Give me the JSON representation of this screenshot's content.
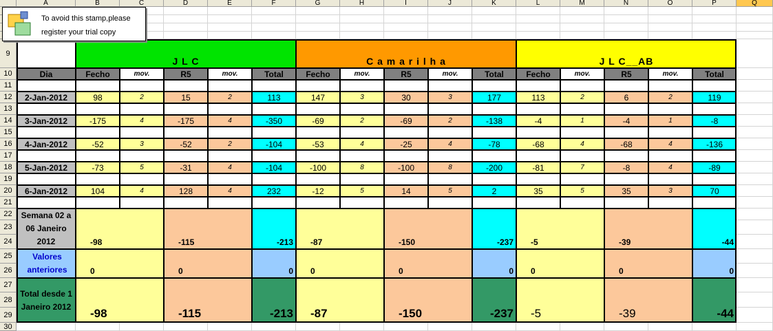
{
  "stamp": {
    "line1": "To avoid this stamp,please",
    "line2": "register your trial copy",
    "icon": "trial-stamp-icon"
  },
  "columns": [
    "A",
    "B",
    "C",
    "D",
    "E",
    "F",
    "G",
    "H",
    "I",
    "J",
    "K",
    "L",
    "M",
    "N",
    "O",
    "P",
    "Q"
  ],
  "selected_column": "Q",
  "rows": [
    "9",
    "10",
    "11",
    "12",
    "13",
    "14",
    "15",
    "16",
    "17",
    "18",
    "19",
    "20",
    "21",
    "22",
    "23",
    "24",
    "25",
    "26",
    "27",
    "28",
    "29",
    "30"
  ],
  "groups": [
    {
      "name": "J  L  C",
      "color": "#00e400"
    },
    {
      "name": "C a m a r i l h a",
      "color": "#ff9900"
    },
    {
      "name": "J L C__AB",
      "color": "#ffff00"
    }
  ],
  "headers": {
    "dia": "Dia",
    "sub": [
      "Fecho",
      "mov.",
      "R5",
      "mov.",
      "Total"
    ]
  },
  "colors": {
    "fecho": "#ffff99",
    "r5": "#fcc89b",
    "total": "#00ffff",
    "anteriores": "#99ccff",
    "total_desde": "#339966",
    "date": "#c0c0c0",
    "header": "#808080"
  },
  "daily": [
    {
      "date": "2-Jan-2012",
      "values": [
        [
          "98",
          "2",
          "15",
          "2",
          "113"
        ],
        [
          "147",
          "3",
          "30",
          "3",
          "177"
        ],
        [
          "113",
          "2",
          "6",
          "2",
          "119"
        ]
      ]
    },
    {
      "date": "3-Jan-2012",
      "values": [
        [
          "-175",
          "4",
          "-175",
          "4",
          "-350"
        ],
        [
          "-69",
          "2",
          "-69",
          "2",
          "-138"
        ],
        [
          "-4",
          "1",
          "-4",
          "1",
          "-8"
        ]
      ]
    },
    {
      "date": "4-Jan-2012",
      "values": [
        [
          "-52",
          "3",
          "-52",
          "2",
          "-104"
        ],
        [
          "-53",
          "4",
          "-25",
          "4",
          "-78"
        ],
        [
          "-68",
          "4",
          "-68",
          "4",
          "-136"
        ]
      ]
    },
    {
      "date": "5-Jan-2012",
      "values": [
        [
          "-73",
          "5",
          "-31",
          "4",
          "-104"
        ],
        [
          "-100",
          "8",
          "-100",
          "8",
          "-200"
        ],
        [
          "-81",
          "7",
          "-8",
          "4",
          "-89"
        ]
      ]
    },
    {
      "date": "6-Jan-2012",
      "values": [
        [
          "104",
          "4",
          "128",
          "4",
          "232"
        ],
        [
          "-12",
          "5",
          "14",
          "5",
          "2"
        ],
        [
          "35",
          "5",
          "35",
          "3",
          "70"
        ]
      ]
    }
  ],
  "summary": [
    {
      "label": "Semana 02 a 06 Janeiro 2012",
      "values": [
        [
          "-98",
          "-115",
          "-213"
        ],
        [
          "-87",
          "-150",
          "-237"
        ],
        [
          "-5",
          "-39",
          "-44"
        ]
      ]
    },
    {
      "label": "Valores anteriores",
      "values": [
        [
          "0",
          "0",
          "0"
        ],
        [
          "0",
          "0",
          "0"
        ],
        [
          "0",
          "0",
          "0"
        ]
      ]
    },
    {
      "label": "Total desde 1 Janeiro 2012",
      "values": [
        [
          "-98",
          "-115",
          "-213"
        ],
        [
          "-87",
          "-150",
          "-237"
        ],
        [
          "-5",
          "-39",
          "-44"
        ]
      ]
    }
  ]
}
